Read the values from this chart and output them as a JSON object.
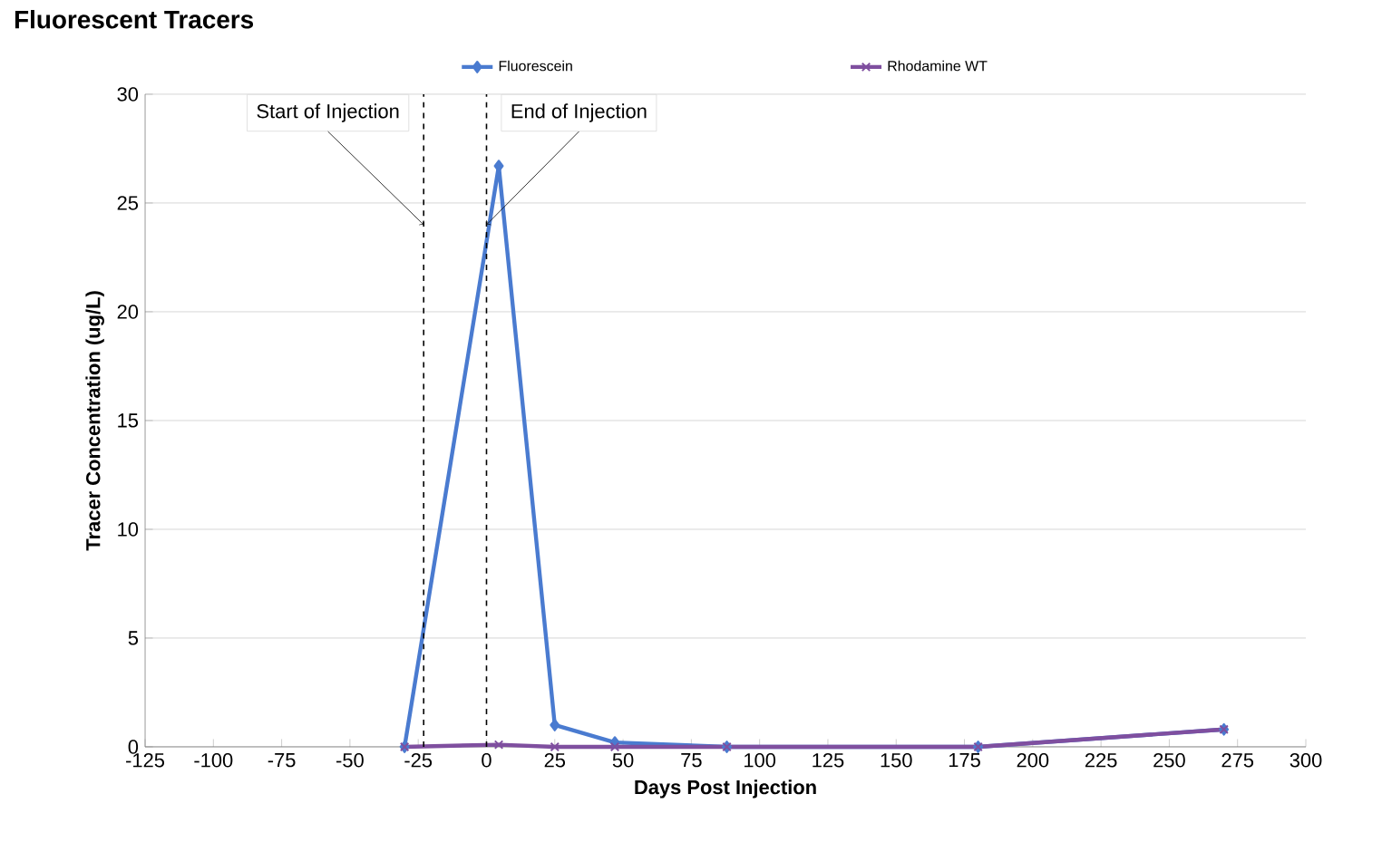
{
  "chart_data": {
    "type": "line",
    "title": "Fluorescent Tracers",
    "xlabel": "Days Post Injection",
    "ylabel": "Tracer Concentration (ug/L)",
    "x": [
      -30,
      4.5,
      25,
      47,
      88,
      180,
      270
    ],
    "series": [
      {
        "name": "Fluorescein",
        "color": "#4a7bd0",
        "marker": "diamond",
        "values": [
          0,
          26.7,
          1.0,
          0.2,
          0,
          0,
          0.8
        ]
      },
      {
        "name": "Rhodamine WT",
        "color": "#7f4f9f",
        "marker": "cross",
        "values": [
          0,
          0.1,
          0,
          0,
          0,
          0,
          0.8
        ]
      }
    ],
    "xlim": [
      -125,
      300
    ],
    "xticks": [
      -125,
      -100,
      -75,
      -50,
      -25,
      0,
      25,
      50,
      75,
      100,
      125,
      150,
      175,
      200,
      225,
      250,
      275,
      300
    ],
    "ylim": [
      0,
      30
    ],
    "yticks": [
      0,
      5,
      10,
      15,
      20,
      25,
      30
    ],
    "ref_lines": [
      {
        "axis": "x",
        "value": -23,
        "label": "Start of Injection",
        "line_style": "dashed",
        "color": "#000000"
      },
      {
        "axis": "x",
        "value": 0,
        "label": "End of Injection",
        "line_style": "dashed",
        "color": "#000000"
      }
    ],
    "grid": "y",
    "legend": "top"
  }
}
